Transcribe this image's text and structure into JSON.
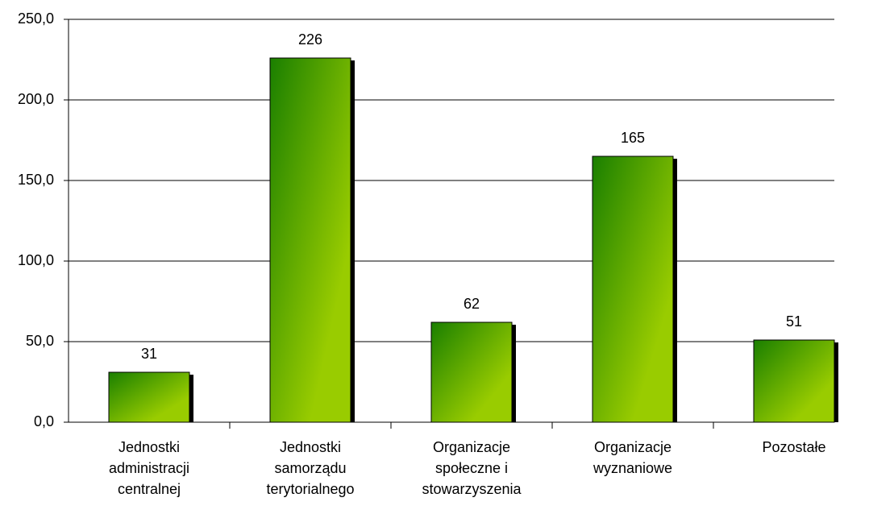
{
  "chart_data": {
    "type": "bar",
    "categories": [
      "Jednostki\nadministracji\ncentralnej",
      "Jednostki\nsamorządu\nterytorialnego",
      "Organizacje\nspołeczne i\nstowarzyszenia",
      "Organizacje\nwyznaniowe",
      "Pozostałe"
    ],
    "values": [
      31,
      226,
      62,
      165,
      51
    ],
    "color": [
      "#1a7f00",
      "#99cc00"
    ],
    "ylim": [
      0,
      250
    ],
    "yticks": [
      {
        "value": 0,
        "label": "0,0"
      },
      {
        "value": 50,
        "label": "50,0"
      },
      {
        "value": 100,
        "label": "100,0"
      },
      {
        "value": 150,
        "label": "150,0"
      },
      {
        "value": 200,
        "label": "200,0"
      },
      {
        "value": 250,
        "label": "250,0"
      }
    ],
    "grid": true
  }
}
